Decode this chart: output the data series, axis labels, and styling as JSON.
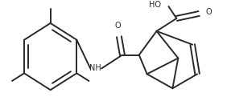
{
  "bg_color": "#ffffff",
  "line_color": "#2a2a2a",
  "line_width": 1.4,
  "figsize": [
    2.82,
    1.36
  ],
  "dpi": 100,
  "NH_text": "NH",
  "HO_text": "HO",
  "O_text": "O",
  "font_size": 7.0
}
